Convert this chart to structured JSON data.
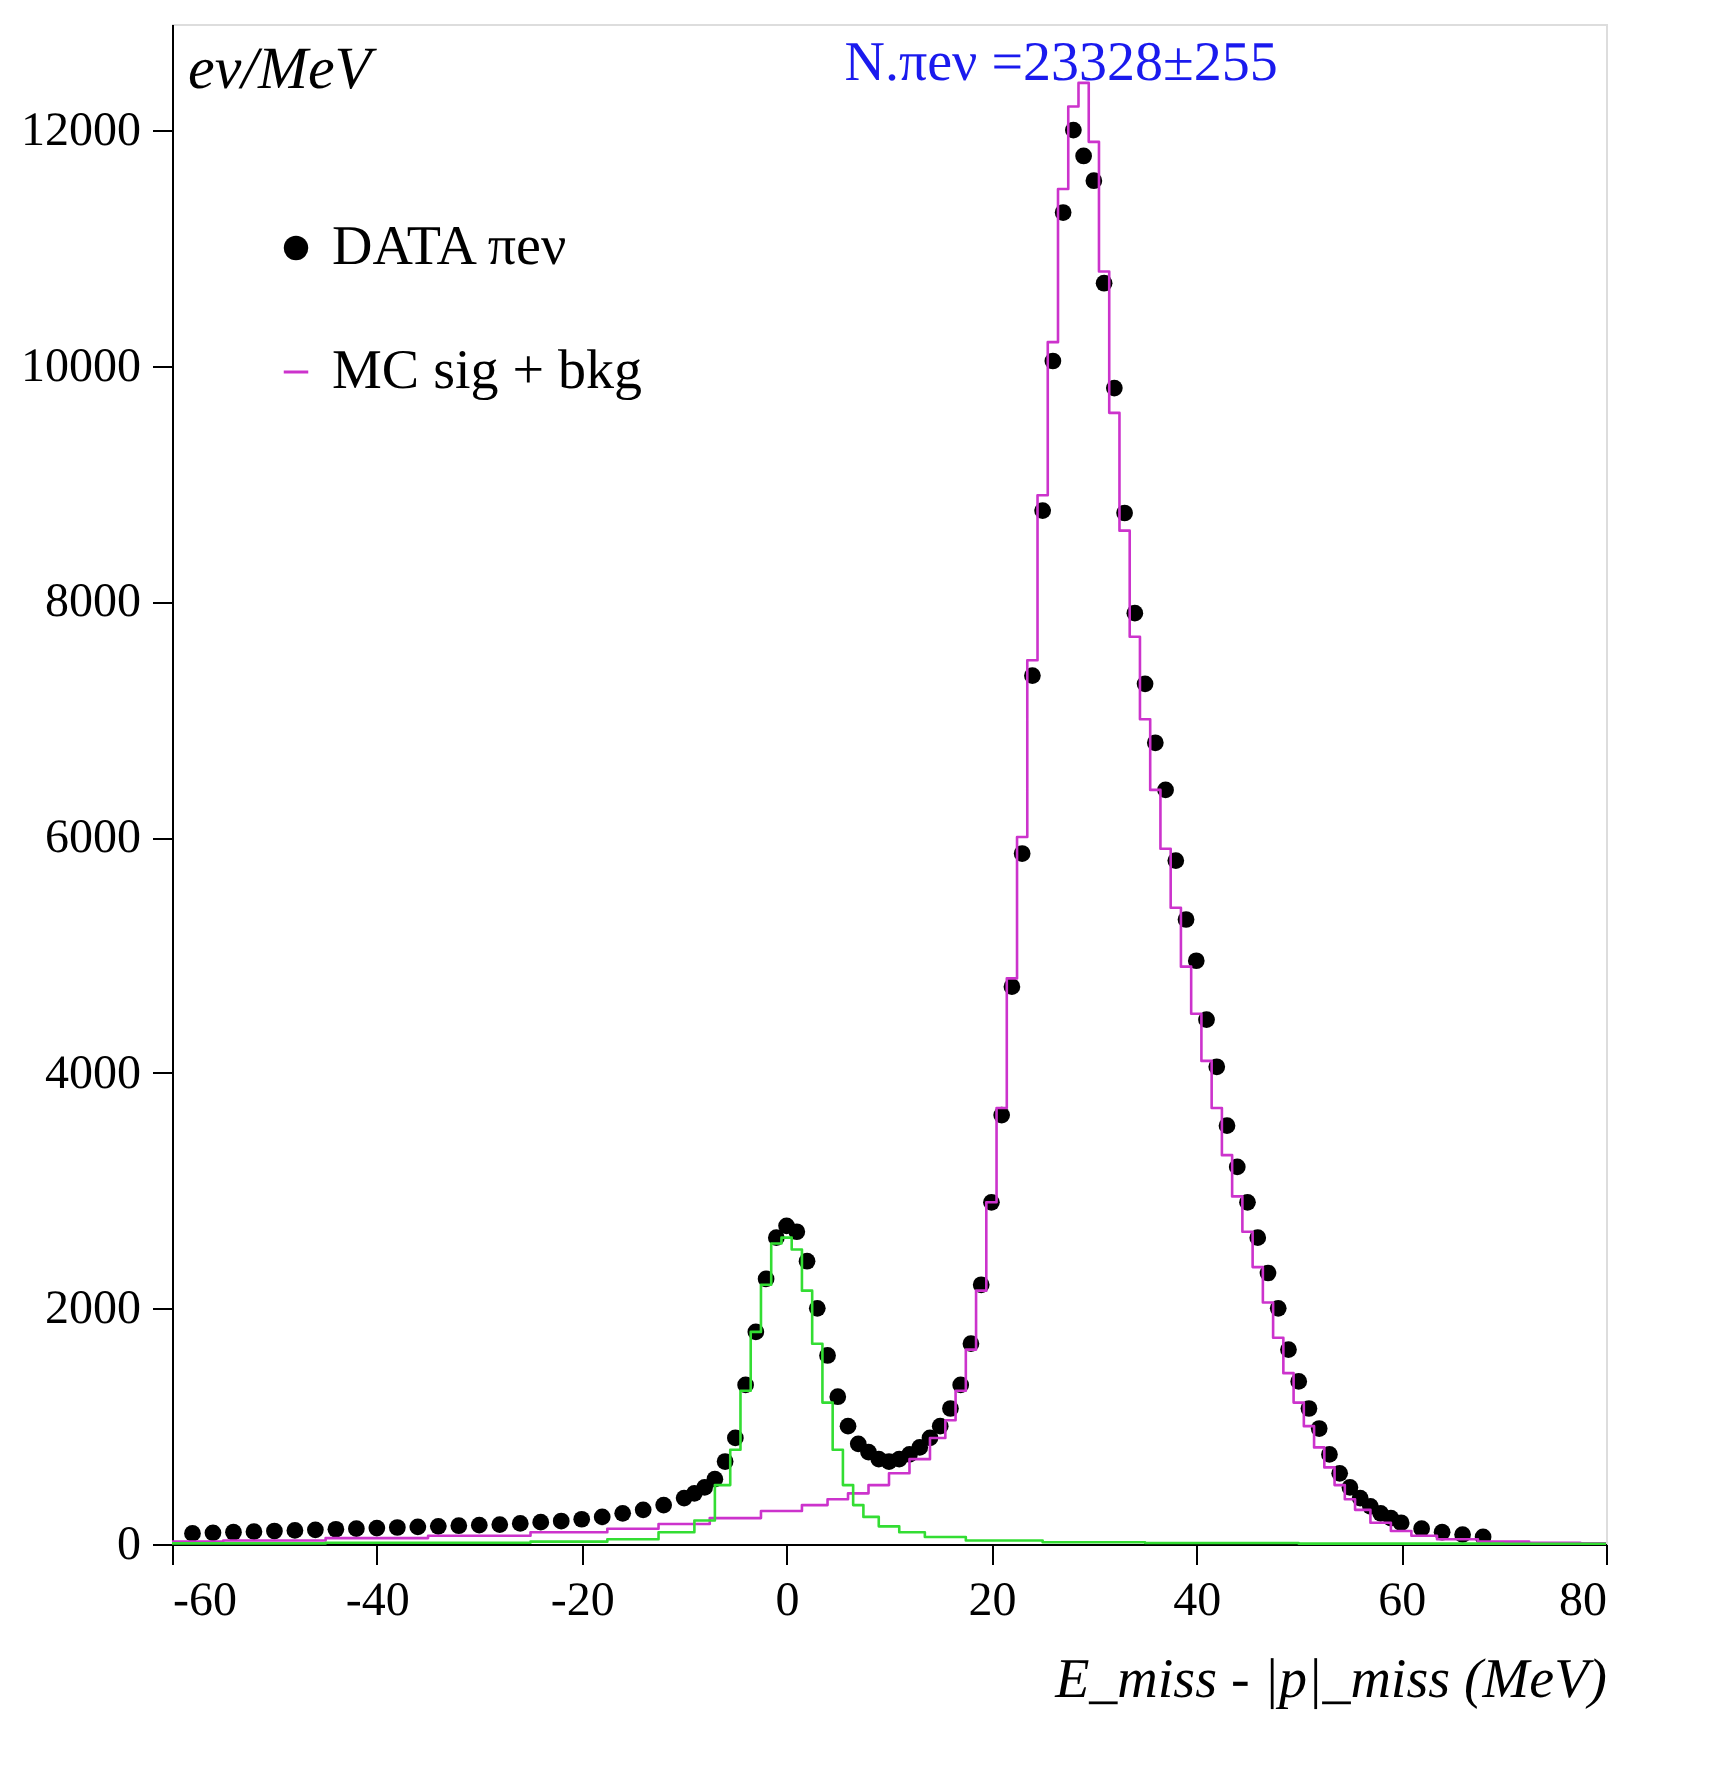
{
  "chart_data": {
    "type": "scatter",
    "ylabel": "ev/MeV",
    "xlabel": "E_miss - |p|_miss (MeV)",
    "annotations": [
      "N.πeν =23328±255"
    ],
    "xlim": [
      -60,
      80
    ],
    "xticks": [
      -60,
      -40,
      -20,
      0,
      20,
      40,
      60,
      80
    ],
    "ylim": [
      0,
      12900
    ],
    "yticks": [
      0,
      2000,
      4000,
      6000,
      8000,
      10000,
      12000
    ],
    "legend": "top left",
    "grid": false,
    "series": [
      {
        "name": "DATA πeν",
        "marker": "circle",
        "color": "#000000",
        "x": [
          -58,
          -56,
          -54,
          -52,
          -50,
          -48,
          -46,
          -44,
          -42,
          -40,
          -38,
          -36,
          -34,
          -32,
          -30,
          -28,
          -26,
          -24,
          -22,
          -20,
          -18,
          -16,
          -14,
          -12,
          -10,
          -9,
          -8,
          -7,
          -6,
          -5,
          -4,
          -3,
          -2,
          -1,
          0,
          1,
          2,
          3,
          4,
          5,
          6,
          7,
          8,
          9,
          10,
          11,
          12,
          13,
          14,
          15,
          16,
          17,
          18,
          19,
          20,
          21,
          22,
          23,
          24,
          25,
          26,
          27,
          28,
          29,
          30,
          31,
          32,
          33,
          34,
          35,
          36,
          37,
          38,
          39,
          40,
          41,
          42,
          43,
          44,
          45,
          46,
          47,
          48,
          49,
          50,
          51,
          52,
          53,
          54,
          55,
          56,
          57,
          58,
          59,
          60,
          62,
          64,
          66,
          68
        ],
        "values": [
          90,
          95,
          100,
          105,
          110,
          115,
          120,
          125,
          130,
          135,
          140,
          145,
          150,
          155,
          160,
          165,
          175,
          185,
          195,
          210,
          230,
          260,
          290,
          330,
          390,
          430,
          480,
          550,
          700,
          900,
          1350,
          1800,
          2250,
          2600,
          2700,
          2650,
          2400,
          2000,
          1600,
          1250,
          1000,
          850,
          780,
          720,
          700,
          720,
          760,
          820,
          900,
          1000,
          1150,
          1350,
          1700,
          2200,
          2900,
          3640,
          4730,
          5860,
          7370,
          8770,
          10040,
          11300,
          12000,
          11780,
          11570,
          10700,
          9810,
          8750,
          7900,
          7300,
          6800,
          6400,
          5800,
          5300,
          4950,
          4450,
          4050,
          3550,
          3200,
          2900,
          2600,
          2300,
          2000,
          1650,
          1380,
          1150,
          980,
          760,
          600,
          480,
          390,
          320,
          260,
          220,
          180,
          130,
          100,
          80,
          60
        ]
      },
      {
        "name": "MC sig + bkg",
        "type": "step",
        "color": "#cc33cc",
        "x": [
          -60,
          -50,
          -40,
          -30,
          -20,
          -15,
          -10,
          -5,
          0,
          3,
          5,
          7,
          9,
          11,
          13,
          15,
          16,
          17,
          18,
          19,
          20,
          21,
          22,
          23,
          24,
          25,
          26,
          27,
          28,
          29,
          30,
          31,
          32,
          33,
          34,
          35,
          36,
          37,
          38,
          39,
          40,
          41,
          42,
          43,
          44,
          45,
          46,
          47,
          48,
          49,
          50,
          51,
          52,
          53,
          54,
          55,
          56,
          58,
          60,
          62,
          65,
          70,
          75,
          80
        ],
        "values": [
          20,
          30,
          50,
          70,
          100,
          130,
          170,
          220,
          280,
          330,
          380,
          430,
          500,
          600,
          720,
          900,
          1050,
          1300,
          1650,
          2150,
          2900,
          3700,
          4800,
          6000,
          7500,
          8900,
          10200,
          11500,
          12200,
          12400,
          11900,
          10800,
          9600,
          8600,
          7700,
          7000,
          6400,
          5900,
          5400,
          4900,
          4500,
          4100,
          3700,
          3300,
          2950,
          2650,
          2350,
          2050,
          1750,
          1450,
          1200,
          1000,
          820,
          650,
          500,
          380,
          290,
          180,
          110,
          70,
          40,
          20,
          10,
          5
        ]
      },
      {
        "type": "step",
        "color": "#33dd33",
        "x": [
          -60,
          -30,
          -20,
          -15,
          -10,
          -8,
          -6,
          -5,
          -4,
          -3,
          -2,
          -1,
          0,
          1,
          2,
          3,
          4,
          5,
          6,
          7,
          8,
          10,
          12,
          15,
          20,
          30,
          40,
          60,
          80
        ],
        "values": [
          5,
          10,
          20,
          40,
          100,
          200,
          500,
          800,
          1300,
          1800,
          2200,
          2550,
          2600,
          2500,
          2150,
          1700,
          1200,
          800,
          500,
          330,
          230,
          150,
          100,
          60,
          30,
          15,
          8,
          3,
          2
        ]
      }
    ]
  }
}
